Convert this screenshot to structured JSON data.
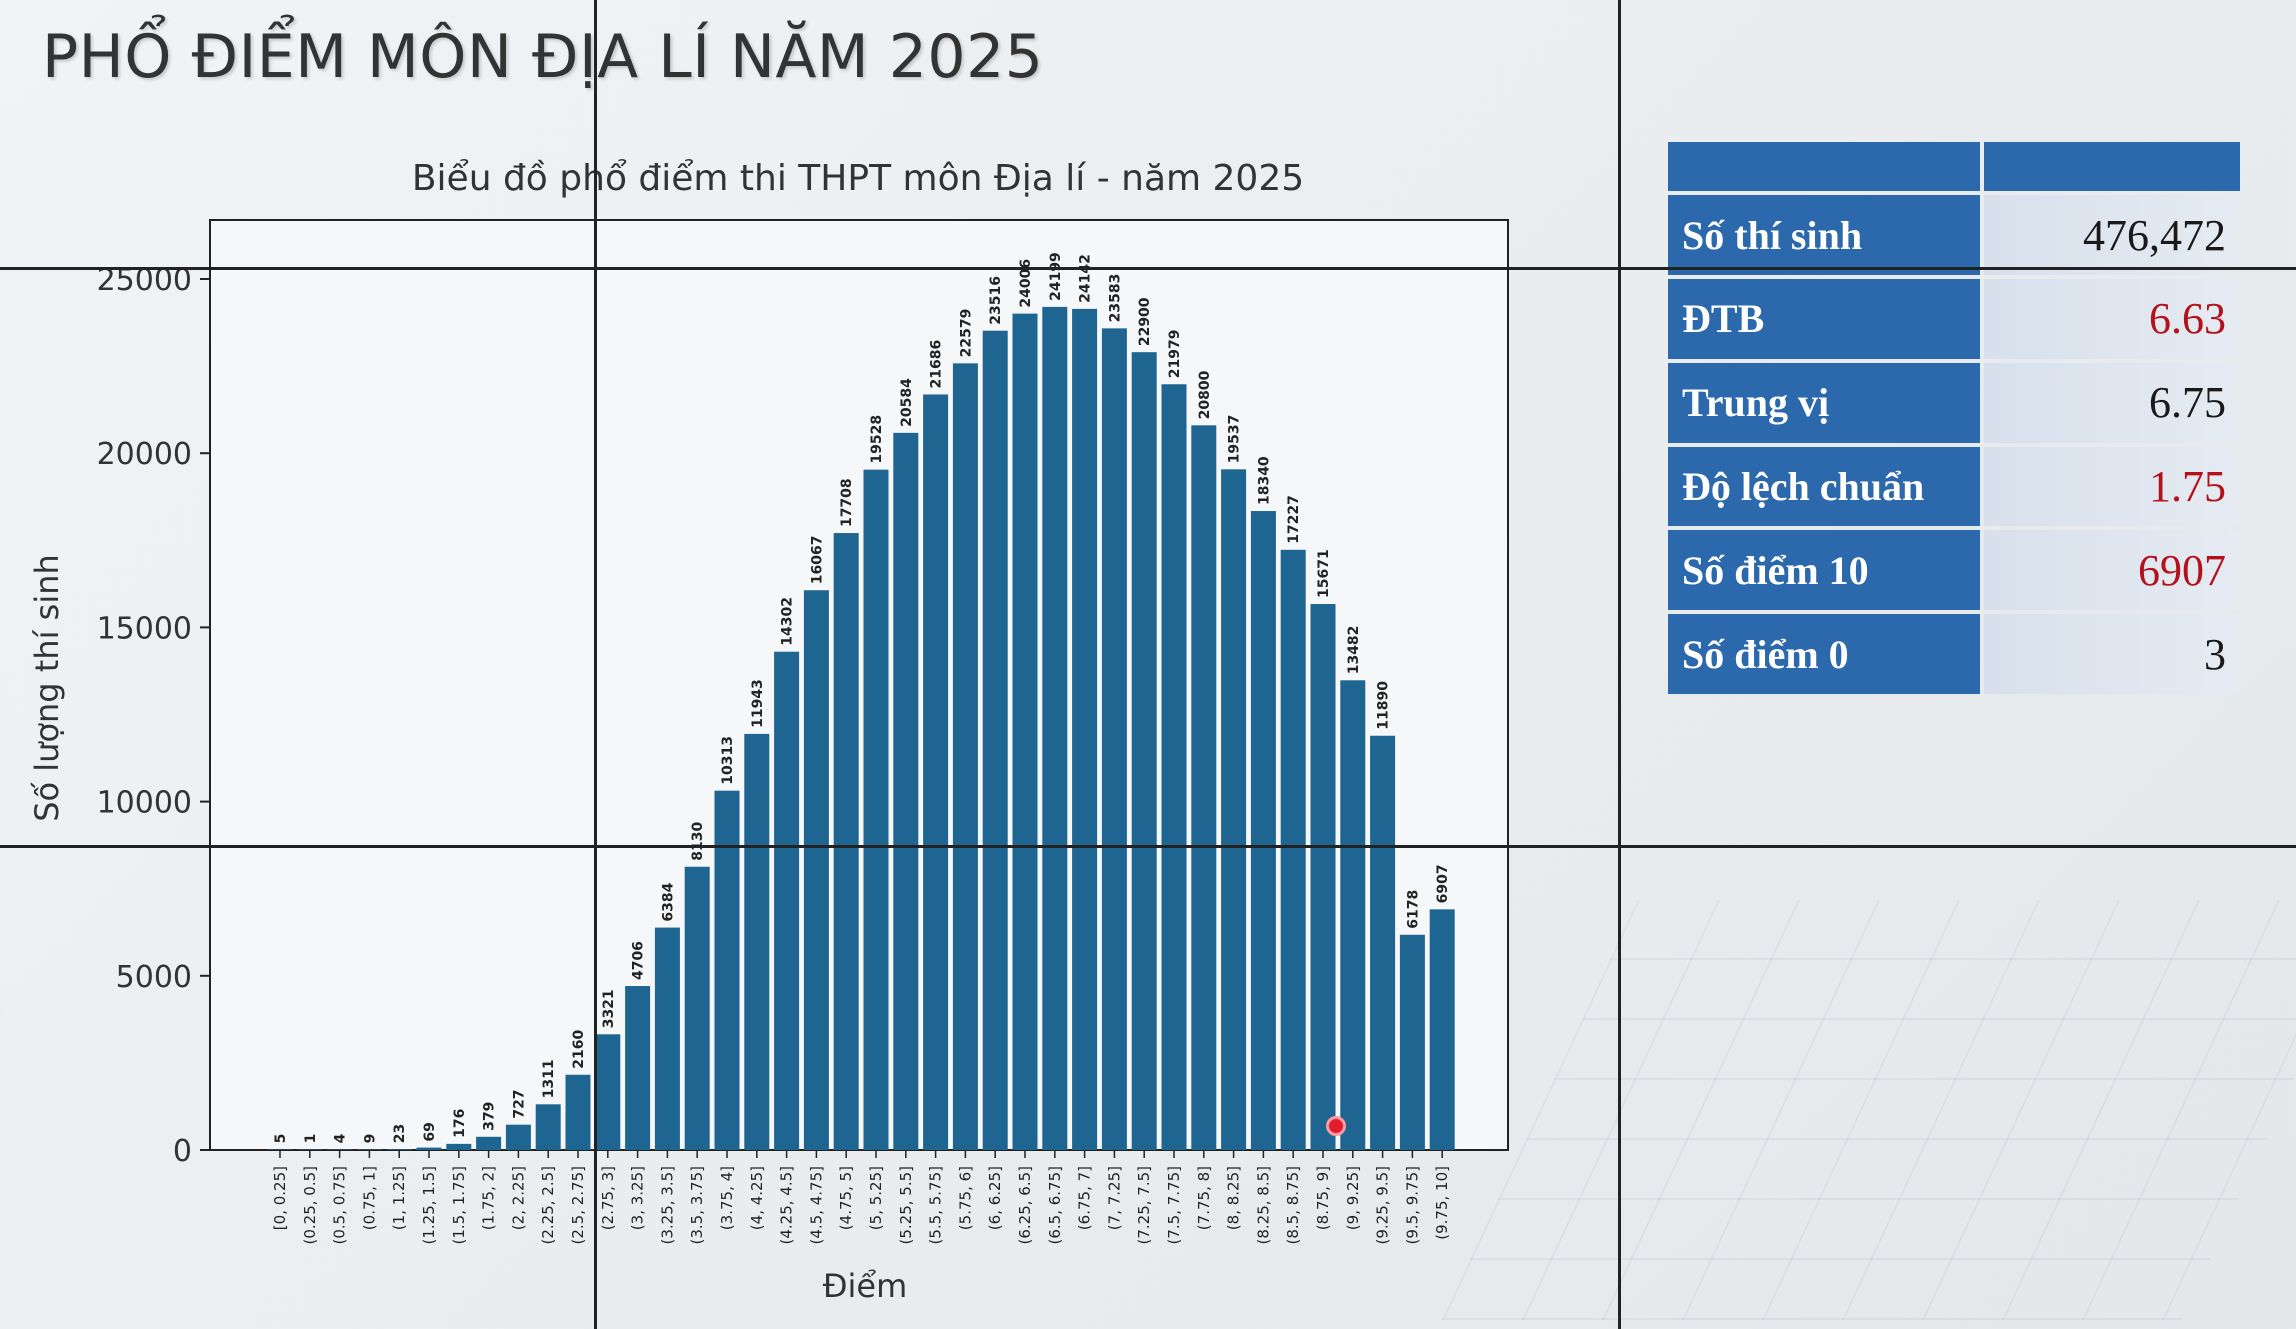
{
  "page_title": "PHỔ ĐIỂM MÔN ĐỊA LÍ NĂM 2025",
  "chart_data": {
    "type": "bar",
    "title": "Biểu đồ phổ điểm thi THPT môn Địa lí - năm 2025",
    "xlabel": "Điểm",
    "ylabel": "Số lượng thí sinh",
    "ylim": [
      0,
      26500
    ],
    "yticks": [
      0,
      5000,
      10000,
      15000,
      20000,
      25000
    ],
    "bar_color": "#1f6591",
    "categories": [
      "[0, 0.25]",
      "(0.25, 0.5]",
      "(0.5, 0.75]",
      "(0.75, 1]",
      "(1, 1.25]",
      "(1.25, 1.5]",
      "(1.5, 1.75]",
      "(1.75, 2]",
      "(2, 2.25]",
      "(2.25, 2.5]",
      "(2.5, 2.75]",
      "(2.75, 3]",
      "(3, 3.25]",
      "(3.25, 3.5]",
      "(3.5, 3.75]",
      "(3.75, 4]",
      "(4, 4.25]",
      "(4.25, 4.5]",
      "(4.5, 4.75]",
      "(4.75, 5]",
      "(5, 5.25]",
      "(5.25, 5.5]",
      "(5.5, 5.75]",
      "(5.75, 6]",
      "(6, 6.25]",
      "(6.25, 6.5]",
      "(6.5, 6.75]",
      "(6.75, 7]",
      "(7, 7.25]",
      "(7.25, 7.5]",
      "(7.5, 7.75]",
      "(7.75, 8]",
      "(8, 8.25]",
      "(8.25, 8.5]",
      "(8.5, 8.75]",
      "(8.75, 9]",
      "(9, 9.25]",
      "(9.25, 9.5]",
      "(9.5, 9.75]",
      "(9.75, 10]"
    ],
    "values": [
      5,
      1,
      4,
      9,
      23,
      69,
      176,
      379,
      727,
      1311,
      2160,
      3321,
      4706,
      6384,
      8130,
      10313,
      11943,
      14302,
      16067,
      17708,
      19528,
      20584,
      21686,
      22579,
      23516,
      24006,
      24199,
      24142,
      23583,
      22900,
      21979,
      20800,
      19537,
      18340,
      17227,
      15671,
      13482,
      11890,
      6178,
      6907
    ]
  },
  "stats": {
    "rows": [
      {
        "label": "Số thí sinh",
        "value": "476,472",
        "accent": false
      },
      {
        "label": "ĐTB",
        "value": "6.63",
        "accent": true
      },
      {
        "label": "Trung vị",
        "value": "6.75",
        "accent": false
      },
      {
        "label": "Độ lệch chuẩn",
        "value": "1.75",
        "accent": true
      },
      {
        "label": "Số điểm 10",
        "value": "6907",
        "accent": true
      },
      {
        "label": "Số điểm 0",
        "value": "3",
        "accent": false
      }
    ]
  }
}
